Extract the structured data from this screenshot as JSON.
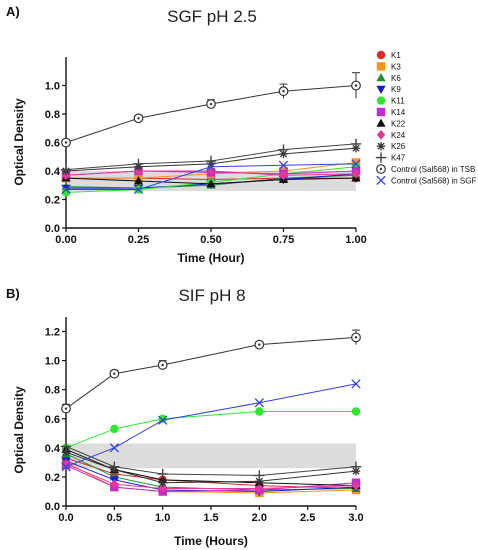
{
  "chart_data": [
    {
      "type": "line",
      "panel_label": "A)",
      "title": "SGF pH 2.5",
      "xlabel": "Time (Hour)",
      "ylabel": "Optical Density",
      "xlim": [
        0,
        1.0
      ],
      "ylim": [
        0,
        1.2
      ],
      "x_ticks": [
        "0.00",
        "0.25",
        "0.50",
        "0.75",
        "1.00"
      ],
      "x_tick_values": [
        0,
        0.25,
        0.5,
        0.75,
        1.0
      ],
      "y_ticks": [
        "0.0",
        "0.2",
        "0.4",
        "0.6",
        "0.8",
        "1.0"
      ],
      "y_tick_values": [
        0,
        0.2,
        0.4,
        0.6,
        0.8,
        1.0
      ],
      "shaded_band": [
        0.26,
        0.4
      ],
      "legend_position": "right",
      "x": [
        0,
        0.25,
        0.5,
        0.75,
        1.0
      ],
      "series": [
        {
          "name": "K1",
          "color": "#e8262a",
          "marker": "circle",
          "values": [
            0.35,
            0.35,
            0.34,
            0.35,
            0.35
          ]
        },
        {
          "name": "K3",
          "color": "#f7941d",
          "marker": "square",
          "values": [
            0.35,
            0.35,
            0.38,
            0.4,
            0.46
          ]
        },
        {
          "name": "K6",
          "color": "#1f8f3a",
          "marker": "triangle",
          "values": [
            0.29,
            0.28,
            0.3,
            0.35,
            0.37
          ]
        },
        {
          "name": "K9",
          "color": "#1a1adb",
          "marker": "triangle-down",
          "values": [
            0.28,
            0.28,
            0.31,
            0.34,
            0.38
          ]
        },
        {
          "name": "K11",
          "color": "#2ee82e",
          "marker": "circle",
          "values": [
            0.25,
            0.27,
            0.32,
            0.38,
            0.43
          ]
        },
        {
          "name": "K14",
          "color": "#c02ccf",
          "marker": "square",
          "values": [
            0.37,
            0.4,
            0.39,
            0.38,
            0.4
          ]
        },
        {
          "name": "K22",
          "color": "#111111",
          "marker": "triangle",
          "values": [
            0.35,
            0.33,
            0.31,
            0.34,
            0.35
          ]
        },
        {
          "name": "K24",
          "color": "#e8379b",
          "marker": "diamond",
          "values": [
            0.37,
            0.4,
            0.4,
            0.37,
            0.38
          ]
        },
        {
          "name": "K26",
          "color": "#333333",
          "marker": "star",
          "values": [
            0.4,
            0.43,
            0.45,
            0.52,
            0.56
          ]
        },
        {
          "name": "K47",
          "color": "#444444",
          "marker": "plus",
          "values": [
            0.41,
            0.45,
            0.47,
            0.55,
            0.59
          ]
        },
        {
          "name": "Control (Sal568) in TSB",
          "color": "#333333",
          "marker": "circle-dot",
          "values": [
            0.6,
            0.77,
            0.87,
            0.96,
            1.0
          ],
          "errors": [
            0.02,
            0.02,
            0.03,
            0.05,
            0.09
          ]
        },
        {
          "name": "Control (Sal568) in SGF",
          "color": "#3344dd",
          "marker": "x",
          "values": [
            0.27,
            0.27,
            0.43,
            0.44,
            0.45
          ]
        }
      ]
    },
    {
      "type": "line",
      "panel_label": "B)",
      "title": "SIF pH 8",
      "xlabel": "Time (Hours)",
      "ylabel": "Optical Density",
      "xlim": [
        0,
        3.0
      ],
      "ylim": [
        0,
        1.3
      ],
      "x_ticks": [
        "0.0",
        "0.5",
        "1.0",
        "1.5",
        "2.0",
        "2.5",
        "3.0"
      ],
      "x_tick_values": [
        0,
        0.5,
        1.0,
        1.5,
        2.0,
        2.5,
        3.0
      ],
      "y_ticks": [
        "0.0",
        "0.2",
        "0.4",
        "0.6",
        "0.8",
        "1.0",
        "1.2"
      ],
      "y_tick_values": [
        0,
        0.2,
        0.4,
        0.6,
        0.8,
        1.0,
        1.2
      ],
      "shaded_band": [
        0.26,
        0.43
      ],
      "x": [
        0,
        0.5,
        1.0,
        2.0,
        3.0
      ],
      "series": [
        {
          "name": "K1",
          "color": "#e8262a",
          "marker": "circle",
          "values": [
            0.33,
            0.22,
            0.18,
            0.14,
            0.12
          ]
        },
        {
          "name": "K3",
          "color": "#f7941d",
          "marker": "square",
          "values": [
            0.3,
            0.13,
            0.1,
            0.09,
            0.11
          ]
        },
        {
          "name": "K6",
          "color": "#1f8f3a",
          "marker": "triangle",
          "values": [
            0.36,
            0.2,
            0.13,
            0.11,
            0.12
          ]
        },
        {
          "name": "K9",
          "color": "#1a1adb",
          "marker": "triangle-down",
          "values": [
            0.31,
            0.18,
            0.11,
            0.1,
            0.13
          ]
        },
        {
          "name": "K11",
          "color": "#2ee82e",
          "marker": "circle",
          "values": [
            0.4,
            0.53,
            0.6,
            0.65,
            0.65
          ]
        },
        {
          "name": "K14",
          "color": "#c02ccf",
          "marker": "square",
          "values": [
            0.28,
            0.13,
            0.1,
            0.11,
            0.16
          ]
        },
        {
          "name": "K22",
          "color": "#111111",
          "marker": "triangle",
          "values": [
            0.39,
            0.25,
            0.18,
            0.16,
            0.14
          ]
        },
        {
          "name": "K24",
          "color": "#e8379b",
          "marker": "diamond",
          "values": [
            0.29,
            0.15,
            0.12,
            0.12,
            0.14
          ]
        },
        {
          "name": "K26",
          "color": "#333333",
          "marker": "star",
          "values": [
            0.37,
            0.25,
            0.16,
            0.17,
            0.24
          ]
        },
        {
          "name": "K47",
          "color": "#444444",
          "marker": "plus",
          "values": [
            0.41,
            0.27,
            0.22,
            0.21,
            0.27
          ]
        },
        {
          "name": "Control (Sal568) in TSB",
          "color": "#333333",
          "marker": "circle-dot",
          "values": [
            0.67,
            0.91,
            0.97,
            1.11,
            1.16
          ],
          "errors": [
            0.03,
            0.02,
            0.03,
            0.02,
            0.05
          ]
        },
        {
          "name": "Control (Sal568) in SGF",
          "color": "#3344dd",
          "marker": "x",
          "values": [
            0.27,
            0.4,
            0.59,
            0.71,
            0.84
          ]
        }
      ]
    }
  ]
}
